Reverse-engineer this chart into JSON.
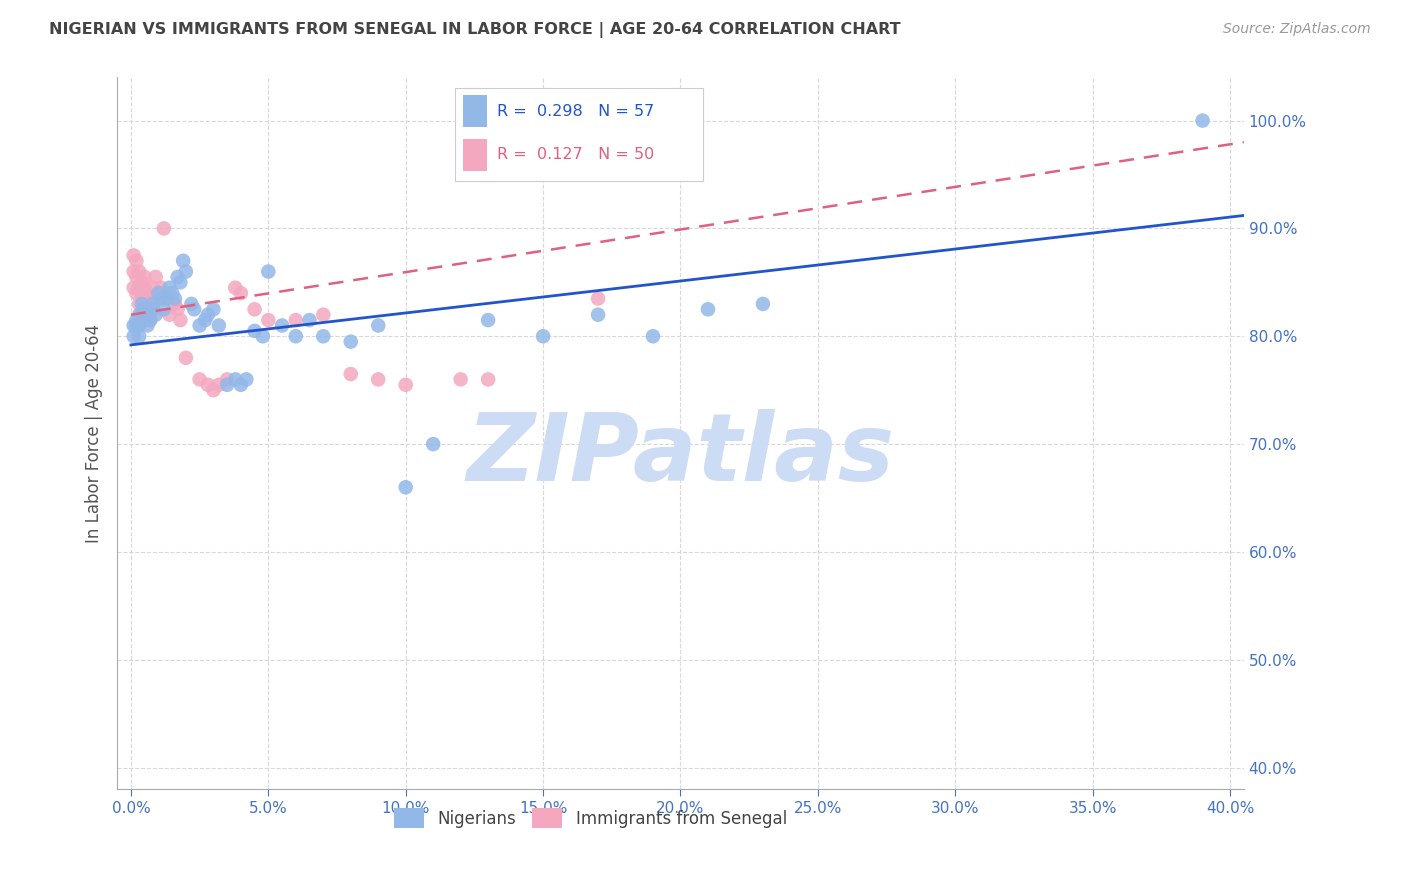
{
  "title": "NIGERIAN VS IMMIGRANTS FROM SENEGAL IN LABOR FORCE | AGE 20-64 CORRELATION CHART",
  "source": "Source: ZipAtlas.com",
  "ylabel": "In Labor Force | Age 20-64",
  "xlim": [
    -0.005,
    0.405
  ],
  "ylim": [
    0.38,
    1.04
  ],
  "yticks": [
    0.4,
    0.5,
    0.6,
    0.7,
    0.8,
    0.9,
    1.0
  ],
  "xticks": [
    0.0,
    0.05,
    0.1,
    0.15,
    0.2,
    0.25,
    0.3,
    0.35,
    0.4
  ],
  "background_color": "#ffffff",
  "grid_color": "#d8d8d8",
  "tick_label_color": "#4472c4",
  "title_color": "#444444",
  "watermark_color": "#ccdcf4",
  "series": [
    {
      "name": "Nigerians",
      "R": 0.298,
      "N": 57,
      "color": "#92b8e8",
      "line_color": "#2255cc",
      "line_style": "-",
      "x": [
        0.001,
        0.001,
        0.002,
        0.002,
        0.003,
        0.003,
        0.003,
        0.004,
        0.004,
        0.005,
        0.005,
        0.006,
        0.006,
        0.007,
        0.008,
        0.008,
        0.009,
        0.01,
        0.011,
        0.012,
        0.013,
        0.014,
        0.015,
        0.016,
        0.017,
        0.018,
        0.019,
        0.02,
        0.022,
        0.023,
        0.025,
        0.027,
        0.028,
        0.03,
        0.032,
        0.035,
        0.038,
        0.04,
        0.042,
        0.045,
        0.048,
        0.05,
        0.055,
        0.06,
        0.065,
        0.07,
        0.08,
        0.09,
        0.1,
        0.11,
        0.13,
        0.15,
        0.17,
        0.19,
        0.21,
        0.23,
        0.39
      ],
      "y": [
        0.8,
        0.81,
        0.815,
        0.81,
        0.82,
        0.81,
        0.8,
        0.83,
        0.82,
        0.825,
        0.815,
        0.81,
        0.82,
        0.815,
        0.83,
        0.825,
        0.82,
        0.84,
        0.835,
        0.825,
        0.835,
        0.845,
        0.84,
        0.835,
        0.855,
        0.85,
        0.87,
        0.86,
        0.83,
        0.825,
        0.81,
        0.815,
        0.82,
        0.825,
        0.81,
        0.755,
        0.76,
        0.755,
        0.76,
        0.805,
        0.8,
        0.86,
        0.81,
        0.8,
        0.815,
        0.8,
        0.795,
        0.81,
        0.66,
        0.7,
        0.815,
        0.8,
        0.82,
        0.8,
        0.825,
        0.83,
        1.0
      ],
      "trend_x": [
        0.0,
        0.405
      ],
      "trend_y": [
        0.792,
        0.912
      ]
    },
    {
      "name": "Immigrants from Senegal",
      "R": 0.127,
      "N": 50,
      "color": "#f4a8c0",
      "line_color": "#e06080",
      "line_style": "--",
      "x": [
        0.001,
        0.001,
        0.001,
        0.002,
        0.002,
        0.002,
        0.003,
        0.003,
        0.003,
        0.004,
        0.004,
        0.004,
        0.005,
        0.005,
        0.005,
        0.005,
        0.006,
        0.006,
        0.007,
        0.007,
        0.007,
        0.008,
        0.008,
        0.009,
        0.01,
        0.011,
        0.012,
        0.013,
        0.014,
        0.016,
        0.017,
        0.018,
        0.02,
        0.025,
        0.028,
        0.03,
        0.032,
        0.035,
        0.038,
        0.04,
        0.045,
        0.05,
        0.06,
        0.07,
        0.08,
        0.09,
        0.1,
        0.12,
        0.13,
        0.17
      ],
      "y": [
        0.875,
        0.86,
        0.845,
        0.87,
        0.855,
        0.84,
        0.86,
        0.845,
        0.83,
        0.85,
        0.835,
        0.82,
        0.855,
        0.845,
        0.83,
        0.82,
        0.84,
        0.825,
        0.835,
        0.82,
        0.815,
        0.845,
        0.835,
        0.855,
        0.84,
        0.845,
        0.9,
        0.835,
        0.82,
        0.83,
        0.825,
        0.815,
        0.78,
        0.76,
        0.755,
        0.75,
        0.755,
        0.76,
        0.845,
        0.84,
        0.825,
        0.815,
        0.815,
        0.82,
        0.765,
        0.76,
        0.755,
        0.76,
        0.76,
        0.835
      ],
      "trend_x": [
        0.0,
        0.405
      ],
      "trend_y": [
        0.82,
        0.98
      ]
    }
  ]
}
